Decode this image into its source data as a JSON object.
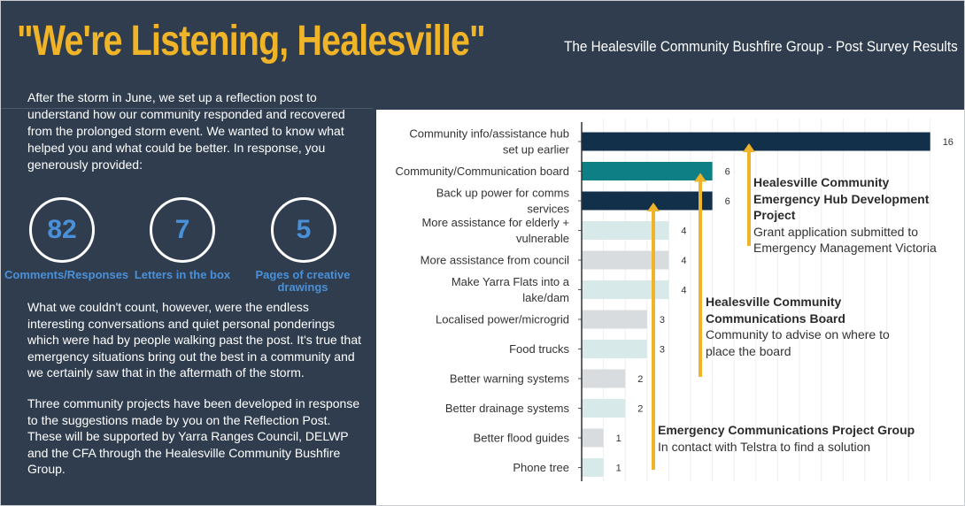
{
  "header": {
    "title": "\"We're Listening, Healesville\"",
    "subtitle": "The Healesville Community Bushfire Group - Post Survey Results"
  },
  "intro": "After the storm in June, we set up a reflection post to understand how our community responded and recovered from the prolonged storm event. We wanted to know what helped you and what could be better. In response, you generously provided:",
  "stats": [
    {
      "value": "82",
      "label": "Comments/Responses"
    },
    {
      "value": "7",
      "label": "Letters in the box"
    },
    {
      "value": "5",
      "label": "Pages of creative drawings"
    }
  ],
  "body_text_1": "What we couldn't count, however, were the endless interesting conversations and quiet personal ponderings which were had by people walking past the post. It's true that emergency situations bring out the best in a community and we certainly saw that in the aftermath of the storm.",
  "body_text_2": "Three community projects have been developed in response to the suggestions made by you on the Reflection Post. These will be supported by Yarra Ranges Council, DELWP and the CFA through the Healesville Community Bushfire Group.",
  "chart_data": {
    "type": "bar",
    "orientation": "horizontal",
    "categories": [
      "Community info/assistance hub set up earlier",
      "Community/Communication board",
      "Back up power for comms services",
      "More assistance for elderly + vulnerable",
      "More assistance from council",
      "Make Yarra Flats into a lake/dam",
      "Localised power/microgrid",
      "Food trucks",
      "Better warning systems",
      "Better drainage systems",
      "Better flood guides",
      "Phone tree"
    ],
    "values": [
      16,
      6,
      6,
      4,
      4,
      4,
      3,
      3,
      2,
      2,
      1,
      1
    ],
    "value_labels": [
      "16",
      "6",
      "6",
      "4",
      "4",
      "4",
      "3",
      "3",
      "2",
      "2",
      "1",
      "1"
    ],
    "colors": [
      "#13304a",
      "#0f7f86",
      "#13304a",
      "#d8e9ea",
      "#d9dcdf",
      "#d8e9ea",
      "#d9dcdf",
      "#d8e9ea",
      "#d9dcdf",
      "#d8e9ea",
      "#d9dcdf",
      "#d8e9ea"
    ],
    "xlim": [
      0,
      16.5
    ],
    "grid": true
  },
  "annotations": [
    {
      "target": "Community info/assistance hub set up earlier",
      "title": "Healesville Community Emergency Hub Development Project",
      "text": "Grant application submitted to Emergency Management Victoria"
    },
    {
      "target": "Community/Communication board",
      "title": "Healesville Community Communications Board",
      "text": "Community to advise on where to place the board"
    },
    {
      "target": "Back up power for comms services",
      "title": "Emergency Communications Project Group",
      "text": "In contact with Telstra to find a solution"
    }
  ],
  "colors": {
    "background": "#2f3d4f",
    "title": "#f0b429",
    "stat": "#4a90d9",
    "arrow": "#f0b429"
  }
}
